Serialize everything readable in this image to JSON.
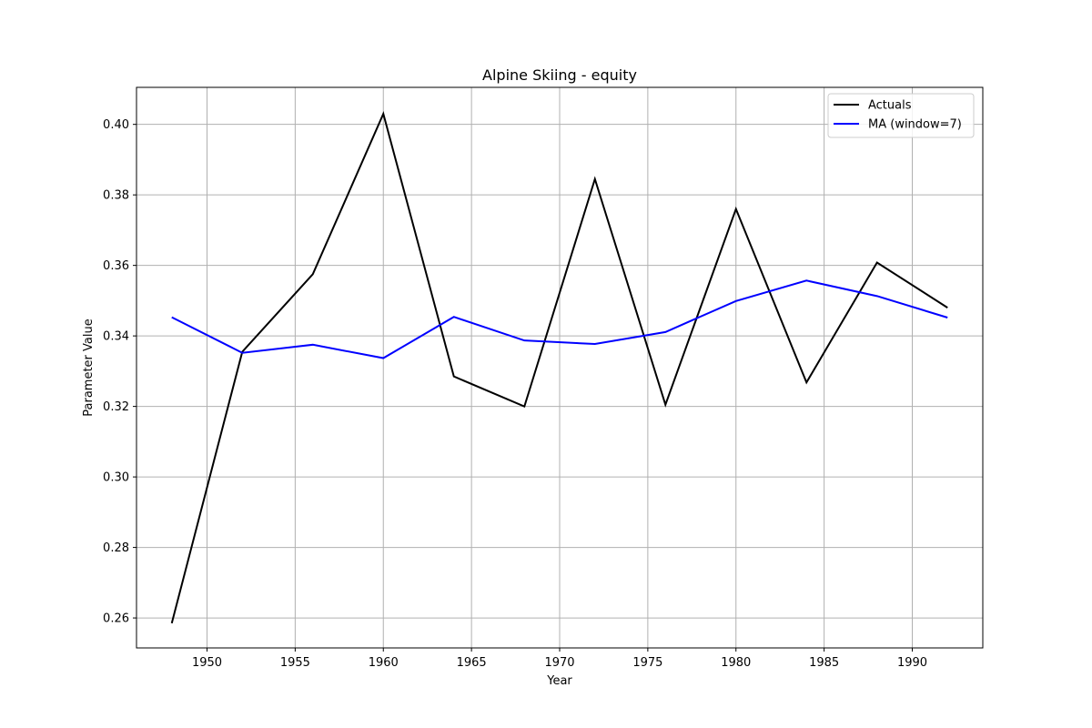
{
  "chart_data": {
    "type": "line",
    "title": "Alpine Skiing - equity",
    "xlabel": "Year",
    "ylabel": "Parameter Value",
    "xlim": [
      1946,
      1994
    ],
    "ylim": [
      0.2515,
      0.4105
    ],
    "x_ticks": [
      1950,
      1955,
      1960,
      1965,
      1970,
      1975,
      1980,
      1985,
      1990
    ],
    "y_ticks": [
      0.26,
      0.28,
      0.3,
      0.32,
      0.34,
      0.36,
      0.38,
      0.4
    ],
    "y_tick_labels": [
      "0.26",
      "0.28",
      "0.30",
      "0.32",
      "0.34",
      "0.36",
      "0.38",
      "0.40"
    ],
    "grid": true,
    "legend_position": "top-right",
    "x": [
      1948,
      1952,
      1956,
      1960,
      1964,
      1968,
      1972,
      1976,
      1980,
      1984,
      1988,
      1992
    ],
    "series": [
      {
        "name": "Actuals",
        "color": "#000000",
        "values": [
          0.2585,
          0.3355,
          0.3575,
          0.403,
          0.3285,
          0.32,
          0.3845,
          0.3205,
          0.376,
          0.3268,
          0.3608,
          0.348
        ]
      },
      {
        "name": "MA (window=7)",
        "color": "#0000ff",
        "values": [
          0.3453,
          0.3352,
          0.3375,
          0.3337,
          0.3454,
          0.3387,
          0.3377,
          0.3411,
          0.3499,
          0.3557,
          0.3513,
          0.3452
        ]
      }
    ]
  }
}
